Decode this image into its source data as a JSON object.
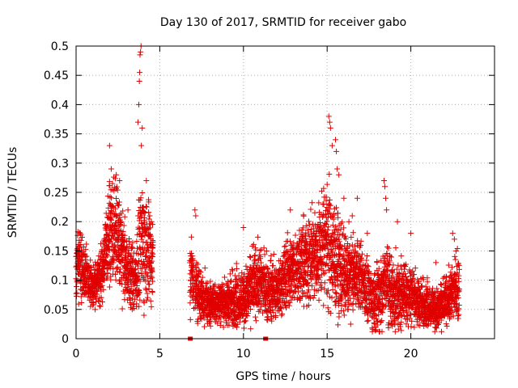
{
  "chart_data": {
    "type": "scatter",
    "title": "Day 130 of 2017, SRMTID for receiver gabo",
    "xlabel": "GPS time / hours",
    "ylabel": "SRMTID / TECUs",
    "xlim": [
      0,
      25
    ],
    "ylim": [
      0,
      0.5
    ],
    "x_ticks": [
      0,
      5,
      10,
      15,
      20
    ],
    "x_tick_labels": [
      "0",
      "5",
      "10",
      "15",
      "20"
    ],
    "y_ticks": [
      0,
      0.05,
      0.1,
      0.15,
      0.2,
      0.25,
      0.3,
      0.35,
      0.4,
      0.45,
      0.5
    ],
    "y_tick_labels": [
      "0",
      "0.05",
      "0.1",
      "0.15",
      "0.2",
      "0.25",
      "0.3",
      "0.35",
      "0.4",
      "0.45",
      "0.5"
    ],
    "grid": true,
    "marker": "plus",
    "color": "#e00000",
    "series": [
      {
        "name": "SRMTID",
        "envelope_hours": [
          0.0,
          0.5,
          1.0,
          1.5,
          2.0,
          2.5,
          3.0,
          3.5,
          4.0,
          4.5,
          6.9,
          7.0,
          7.5,
          8.0,
          8.5,
          9.0,
          9.5,
          10.0,
          10.5,
          11.0,
          11.5,
          12.0,
          12.5,
          13.0,
          13.5,
          14.0,
          14.5,
          15.0,
          15.5,
          16.0,
          16.5,
          17.0,
          17.5,
          18.0,
          18.5,
          19.0,
          19.5,
          20.0,
          20.5,
          21.0,
          21.5,
          22.0,
          22.5,
          22.9
        ],
        "envelope_center": [
          0.13,
          0.12,
          0.085,
          0.11,
          0.19,
          0.18,
          0.12,
          0.1,
          0.17,
          0.14,
          0.12,
          0.09,
          0.07,
          0.06,
          0.065,
          0.06,
          0.07,
          0.07,
          0.09,
          0.1,
          0.08,
          0.08,
          0.11,
          0.12,
          0.13,
          0.13,
          0.15,
          0.17,
          0.14,
          0.11,
          0.11,
          0.11,
          0.07,
          0.07,
          0.1,
          0.07,
          0.08,
          0.08,
          0.06,
          0.06,
          0.05,
          0.06,
          0.08,
          0.09
        ],
        "envelope_spread": [
          0.05,
          0.04,
          0.03,
          0.04,
          0.07,
          0.07,
          0.05,
          0.05,
          0.09,
          0.06,
          0.06,
          0.05,
          0.035,
          0.03,
          0.03,
          0.035,
          0.04,
          0.04,
          0.045,
          0.05,
          0.045,
          0.04,
          0.05,
          0.05,
          0.055,
          0.06,
          0.07,
          0.09,
          0.08,
          0.06,
          0.05,
          0.05,
          0.04,
          0.05,
          0.06,
          0.05,
          0.05,
          0.045,
          0.035,
          0.03,
          0.03,
          0.03,
          0.04,
          0.05
        ],
        "gaps_hours": [
          [
            4.6,
            6.8
          ],
          [
            7.05,
            7.1
          ]
        ],
        "peaks": [
          {
            "x": 2.0,
            "y": 0.33
          },
          {
            "x": 2.1,
            "y": 0.29
          },
          {
            "x": 2.4,
            "y": 0.28
          },
          {
            "x": 2.6,
            "y": 0.27
          },
          {
            "x": 3.1,
            "y": 0.22
          },
          {
            "x": 3.3,
            "y": 0.14
          },
          {
            "x": 3.7,
            "y": 0.37
          },
          {
            "x": 3.75,
            "y": 0.4
          },
          {
            "x": 3.78,
            "y": 0.44
          },
          {
            "x": 3.8,
            "y": 0.455
          },
          {
            "x": 3.82,
            "y": 0.485
          },
          {
            "x": 3.85,
            "y": 0.49
          },
          {
            "x": 3.88,
            "y": 0.5
          },
          {
            "x": 3.9,
            "y": 0.33
          },
          {
            "x": 3.95,
            "y": 0.36
          },
          {
            "x": 4.2,
            "y": 0.27
          },
          {
            "x": 4.4,
            "y": 0.21
          },
          {
            "x": 4.5,
            "y": 0.2
          },
          {
            "x": 7.1,
            "y": 0.22
          },
          {
            "x": 7.15,
            "y": 0.21
          },
          {
            "x": 10.0,
            "y": 0.19
          },
          {
            "x": 12.8,
            "y": 0.22
          },
          {
            "x": 13.2,
            "y": 0.16
          },
          {
            "x": 14.8,
            "y": 0.23
          },
          {
            "x": 15.1,
            "y": 0.38
          },
          {
            "x": 15.15,
            "y": 0.37
          },
          {
            "x": 15.2,
            "y": 0.36
          },
          {
            "x": 15.3,
            "y": 0.33
          },
          {
            "x": 15.5,
            "y": 0.34
          },
          {
            "x": 15.55,
            "y": 0.32
          },
          {
            "x": 15.6,
            "y": 0.29
          },
          {
            "x": 15.7,
            "y": 0.28
          },
          {
            "x": 16.0,
            "y": 0.24
          },
          {
            "x": 16.3,
            "y": 0.2
          },
          {
            "x": 16.5,
            "y": 0.21
          },
          {
            "x": 16.8,
            "y": 0.24
          },
          {
            "x": 17.4,
            "y": 0.18
          },
          {
            "x": 18.4,
            "y": 0.27
          },
          {
            "x": 18.45,
            "y": 0.26
          },
          {
            "x": 18.5,
            "y": 0.24
          },
          {
            "x": 18.55,
            "y": 0.22
          },
          {
            "x": 19.2,
            "y": 0.2
          },
          {
            "x": 20.0,
            "y": 0.18
          },
          {
            "x": 21.5,
            "y": 0.13
          },
          {
            "x": 22.5,
            "y": 0.18
          },
          {
            "x": 22.6,
            "y": 0.17
          },
          {
            "x": 22.7,
            "y": 0.15
          }
        ],
        "baseline_points": [
          {
            "x": 6.8,
            "y": 0.0
          },
          {
            "x": 6.85,
            "y": 0.0
          },
          {
            "x": 11.3,
            "y": 0.0
          },
          {
            "x": 11.35,
            "y": 0.0
          }
        ]
      }
    ]
  }
}
